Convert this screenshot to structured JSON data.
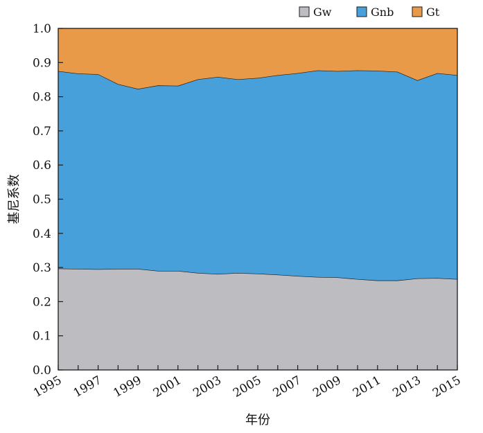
{
  "chart_data": {
    "type": "area",
    "stacked": true,
    "xlabel": "年份",
    "ylabel": "基尼系数",
    "x": [
      1995,
      1996,
      1997,
      1998,
      1999,
      2000,
      2001,
      2002,
      2003,
      2004,
      2005,
      2006,
      2007,
      2008,
      2009,
      2010,
      2011,
      2012,
      2013,
      2014,
      2015
    ],
    "x_tick_labels": [
      "1995",
      "1997",
      "1999",
      "2001",
      "2003",
      "2005",
      "2007",
      "2009",
      "2011",
      "2013",
      "2015"
    ],
    "ylim": [
      0,
      1.0
    ],
    "y_ticks": [
      "0.0",
      "0.1",
      "0.2",
      "0.3",
      "0.4",
      "0.5",
      "0.6",
      "0.7",
      "0.8",
      "0.9",
      "1.0"
    ],
    "grid": false,
    "legend_position": "top-right",
    "series": [
      {
        "name": "Gw",
        "color": "#bdbcc1",
        "values": [
          0.297,
          0.296,
          0.295,
          0.296,
          0.296,
          0.29,
          0.29,
          0.284,
          0.281,
          0.284,
          0.282,
          0.279,
          0.275,
          0.272,
          0.271,
          0.266,
          0.262,
          0.262,
          0.268,
          0.269,
          0.266
        ]
      },
      {
        "name": "Gnb",
        "color": "#48a0db",
        "values": [
          0.578,
          0.572,
          0.571,
          0.541,
          0.527,
          0.543,
          0.542,
          0.567,
          0.577,
          0.567,
          0.573,
          0.584,
          0.594,
          0.605,
          0.604,
          0.611,
          0.614,
          0.611,
          0.58,
          0.6,
          0.597
        ]
      },
      {
        "name": "Gt",
        "color": "#e99a48",
        "values": [
          0.125,
          0.132,
          0.134,
          0.163,
          0.177,
          0.167,
          0.168,
          0.149,
          0.142,
          0.149,
          0.145,
          0.137,
          0.131,
          0.123,
          0.125,
          0.123,
          0.124,
          0.127,
          0.152,
          0.131,
          0.137
        ]
      }
    ]
  }
}
